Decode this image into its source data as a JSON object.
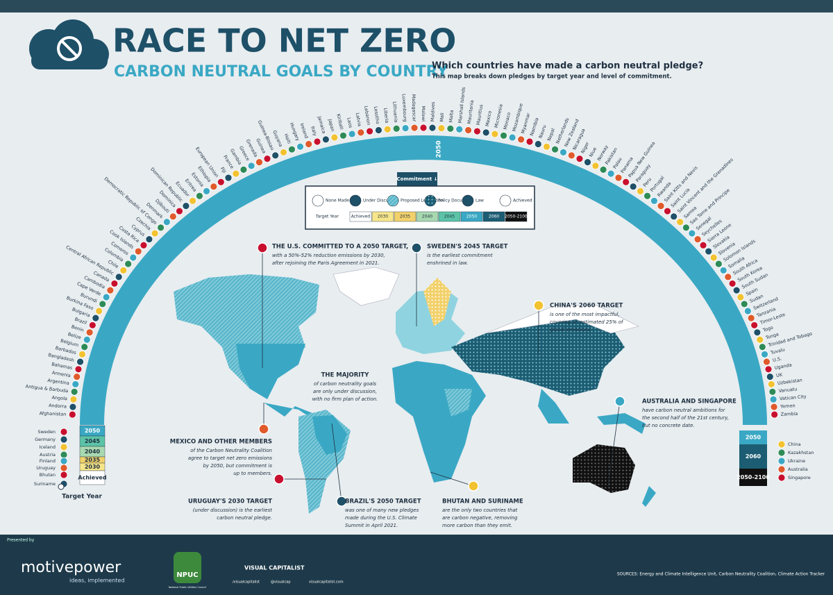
{
  "header": {
    "title": "RACE TO NET ZERO",
    "subtitle": "CARBON NEUTRAL GOALS BY COUNTRY",
    "question": "Which countries have made a carbon neutral pledge?",
    "description": "This map breaks down pledges by target year and level of commitment."
  },
  "arc_label": "2050",
  "countries": [
    "Afghanistan",
    "Andorra",
    "Angola",
    "Antigua & Barbuda",
    "Argentina",
    "Armenia",
    "Bahamas",
    "Bangladesh",
    "Barbados",
    "Belgium",
    "Belize",
    "Benin",
    "Brazil",
    "Bulgaria",
    "Burkina Faso",
    "Burundi",
    "Cape Verde",
    "Cambodia",
    "Canada",
    "Central African Republic",
    "Chile",
    "Colombia",
    "Comoros",
    "Cook Islands",
    "Costa Rica",
    "Cyprus",
    "Czechia",
    "Democratic Republic of Congo",
    "Denmark",
    "Djibouti",
    "Dominica",
    "Dominican Republic",
    "Ecuador",
    "Eritrea",
    "Estonia",
    "Ethiopia",
    "European Union",
    "Fiji",
    "France",
    "Gambia",
    "Greece",
    "Grenada",
    "Guinea",
    "Guinea-Bissau",
    "Guyana",
    "Haiti",
    "Hungary",
    "Ireland",
    "Italy",
    "Jamaica",
    "Japan",
    "Kiribati",
    "Laos",
    "Latvia",
    "Lebanon",
    "Lesotho",
    "Liberia",
    "Lithuania",
    "Luxembourg",
    "Madagascar",
    "Malawi",
    "Maldives",
    "Mali",
    "Malta",
    "Marshall Islands",
    "Mauritania",
    "Mauritius",
    "Mexico",
    "Micronesia",
    "Monaco",
    "Mozambique",
    "Myanmar",
    "Namibia",
    "Nauru",
    "Nepal",
    "Netherlands",
    "New Zealand",
    "Nicaragua",
    "Niger",
    "Niue",
    "Norway",
    "Pakistan",
    "Palau",
    "Panama",
    "Papua New Guinea",
    "Paraguay",
    "Peru",
    "Portugal",
    "Rwanda",
    "Saint Kitts and Nevis",
    "Saint Lucia",
    "Saint Vincent and the Grenadines",
    "Samoa",
    "Sao Tome and Principe",
    "Senegal",
    "Seychelles",
    "Sierra Leone",
    "Slovakia",
    "Slovenia",
    "Solomon Islands",
    "Somalia",
    "South Africa",
    "South Korea",
    "South Sudan",
    "Spain",
    "Sudan",
    "Switzerland",
    "Tanzania",
    "Timor-Leste",
    "Togo",
    "Tonga",
    "Trinidad and Tobago",
    "Tuvalu",
    "U.S.",
    "Uganda",
    "UK",
    "Uzbekistan",
    "Vanuatu",
    "Vatican City",
    "Yemen",
    "Zambia"
  ],
  "left_stack": {
    "years": [
      "2050",
      "2045",
      "2040",
      "2035",
      "2030",
      "Achieved"
    ],
    "countries": [
      "Sweden",
      "Germany",
      "Iceland",
      "Austria",
      "Finland",
      "Uruguay",
      "Bhutan",
      "Suriname"
    ],
    "axis_label": "Target Year"
  },
  "right_stack": {
    "years": [
      "2050",
      "2060",
      "2050-2100"
    ],
    "countries": [
      "China",
      "Kazakhstan",
      "Ukraine",
      "Australia",
      "Singapore"
    ]
  },
  "legend": {
    "button": "Commitment ↓",
    "commitment": [
      "None Made",
      "Under Discussion",
      "Proposed Legislation",
      "Policy Document",
      "Law",
      "Achieved"
    ],
    "year_label": "Target Year",
    "years": [
      "Achieved",
      "2030",
      "2035",
      "2040",
      "2045",
      "2050",
      "2060",
      "2050-2100"
    ]
  },
  "annotations": [
    {
      "title": "THE U.S. COMMITTED TO A 2050 TARGET,",
      "lines": [
        "with a 50%-52% reduction emissions by 2030,",
        "after rejoining the Paris Agreement in 2021."
      ]
    },
    {
      "title": "SWEDEN'S 2045 TARGET",
      "lines": [
        "is the earliest commitment",
        "enshrined in law."
      ]
    },
    {
      "title": "CHINA'S 2060 TARGET",
      "lines": [
        "is one of the most impactful,",
        "covering an estimated 25% of",
        "global emissions."
      ]
    },
    {
      "title": "THE MAJORITY",
      "lines": [
        "of carbon neutrality goals",
        "are only under discussion,",
        "with no firm plan of action."
      ]
    },
    {
      "title": "AUSTRALIA AND SINGAPORE",
      "lines": [
        "have carbon neutral ambitions for",
        "the second half of the 21st century,",
        "but no concrete date."
      ]
    },
    {
      "title": "MEXICO AND OTHER MEMBERS",
      "lines": [
        "of the Carbon Neutrality Coalition",
        "agree to target net zero emissions",
        "by 2050, but commitment is",
        "up to members."
      ]
    },
    {
      "title": "URUGUAY'S 2030 TARGET",
      "lines": [
        "(under discussion) is the earliest",
        "carbon neutral pledge."
      ]
    },
    {
      "title": "BRAZIL'S 2050 TARGET",
      "lines": [
        "was one of many new pledges",
        "made during the U.S. Climate",
        "Summit in April 2021."
      ]
    },
    {
      "title": "BHUTAN AND SURINAME",
      "lines": [
        "are the only two countries that",
        "are carbon negative, removing",
        "more carbon than they emit."
      ]
    }
  ],
  "footer": {
    "presented_by": "Presented by",
    "brand": "motivepower",
    "tagline": "ideas, implemented",
    "npuc": "NPUC",
    "npuc_full": "National Public Utilities Council",
    "publisher": "VISUAL CAPITALIST",
    "handles": [
      "/visualcapitalist",
      "@visualcap",
      "visualcapitalist.com"
    ],
    "sources": "SOURCES: Energy and Climate Intelligence Unit, Carbon Neutrality Coalition, Climate Action Tracker"
  }
}
